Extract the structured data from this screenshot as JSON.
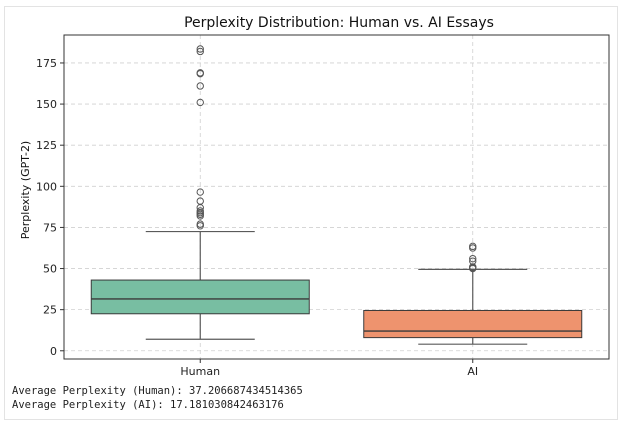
{
  "chart_data": {
    "type": "box",
    "title": "Perplexity Distribution: Human vs. AI Essays",
    "xlabel": "",
    "ylabel": "Perplexity (GPT-2)",
    "ylim": [
      -5,
      192
    ],
    "yticks": [
      0,
      25,
      50,
      75,
      100,
      125,
      150,
      175
    ],
    "grid": true,
    "categories": [
      "Human",
      "AI"
    ],
    "boxes": [
      {
        "category": "Human",
        "color": "#78bea2",
        "whisker_low": 7,
        "q1": 22.5,
        "median": 31.5,
        "q3": 43,
        "whisker_high": 72.5,
        "outliers": [
          76,
          77,
          82,
          83,
          84,
          85,
          87,
          91,
          96.5,
          151,
          161,
          168.5,
          169,
          182,
          183.5
        ]
      },
      {
        "category": "AI",
        "color": "#ee936e",
        "whisker_low": 4,
        "q1": 8,
        "median": 12,
        "q3": 24.5,
        "whisker_high": 49.5,
        "outliers": [
          50,
          50.5,
          51,
          54.5,
          56,
          62.5,
          63.5
        ]
      }
    ]
  },
  "output": {
    "line1": "Average Perplexity (Human): 37.206687434514365",
    "line2": "Average Perplexity (AI): 17.181030842463176"
  },
  "colors": {
    "grid": "#d0d0d0",
    "axis": "#333333",
    "median": "#3a3a3a",
    "whisker": "#5a5a5a"
  }
}
